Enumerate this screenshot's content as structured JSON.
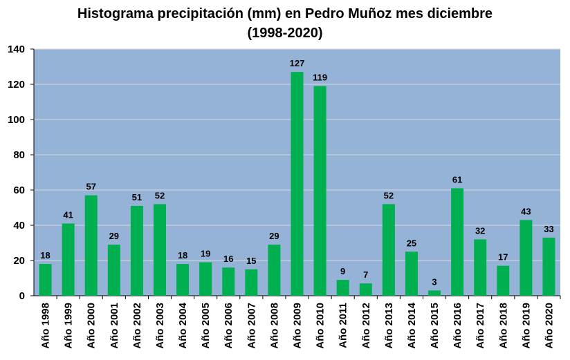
{
  "chart_data": {
    "type": "bar",
    "title_lines": [
      "Histograma precipitación (mm) en Pedro Muñoz mes diciembre",
      "(1998-2020)"
    ],
    "xlabel": "",
    "ylabel": "",
    "ylim": [
      0,
      140
    ],
    "yticks": [
      0,
      20,
      40,
      60,
      80,
      100,
      120,
      140
    ],
    "grid": true,
    "legend": "none",
    "colors": {
      "bar": "#00B050",
      "plot_background": "#95B3D7",
      "grid": "#D9D9D9"
    },
    "categories": [
      "Año 1998",
      "Año 1999",
      "Año 2000",
      "Año 2001",
      "Año 2002",
      "Año 2003",
      "Año 2004",
      "Año 2005",
      "Año 2006",
      "Año 2007",
      "Año 2008",
      "Año 2009",
      "Año 2010",
      "Año 2011",
      "Año 2012",
      "Año 2013",
      "Año 2014",
      "Año 2015",
      "Año 2016",
      "Año 2017",
      "Año 2018",
      "Año 2019",
      "Año 2020"
    ],
    "values": [
      18,
      41,
      57,
      29,
      51,
      52,
      18,
      19,
      16,
      15,
      29,
      127,
      119,
      9,
      7,
      52,
      25,
      3,
      61,
      32,
      17,
      43,
      33
    ]
  }
}
